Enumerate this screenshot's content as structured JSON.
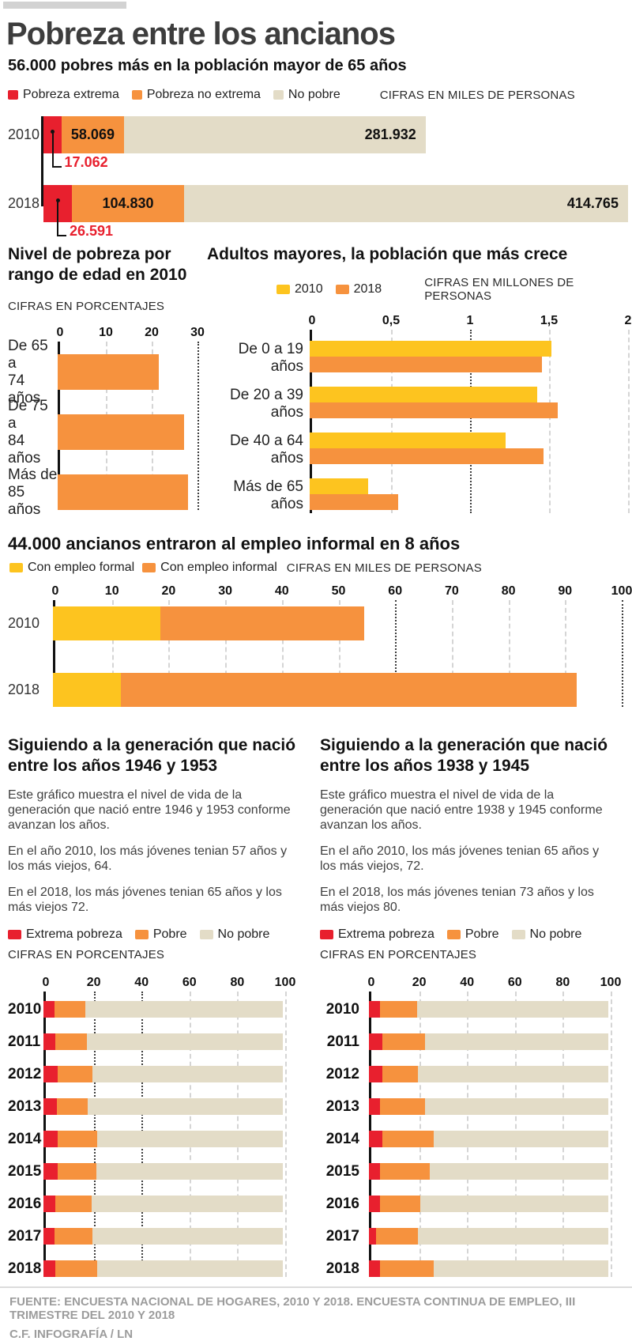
{
  "page": {
    "title": "Pobreza entre los ancianos",
    "subtitle": "56.000 pobres más en la población mayor de 65 años",
    "footer": {
      "source": "FUENTE: ENCUESTA NACIONAL DE HOGARES, 2010 Y 2018. ENCUESTA CONTINUA DE EMPLEO, III TRIMESTRE DEL 2010 Y 2018",
      "credit": "C.F. INFOGRAFÍA / LN"
    }
  },
  "colors": {
    "red": "#e8202e",
    "orange": "#f6923e",
    "beige": "#e3dcc7",
    "yellow": "#fdc41f",
    "title_gray": "#3d3d3d",
    "footer_gray": "#9c9c9c"
  },
  "chart_data": [
    {
      "id": "pobreza-totales",
      "type": "bar",
      "orientation": "horizontal",
      "stacked": true,
      "units_note": "CIFRAS EN MILES DE PERSONAS",
      "categories": [
        "2010",
        "2018"
      ],
      "series": [
        {
          "name": "Pobreza extrema",
          "color": "#e8202e",
          "values": [
            17062,
            26591
          ],
          "labels": [
            "17.062",
            "26.591"
          ]
        },
        {
          "name": "Pobreza no extrema",
          "color": "#f6923e",
          "values": [
            58069,
            104830
          ],
          "labels": [
            "58.069",
            "104.830"
          ]
        },
        {
          "name": "No pobre",
          "color": "#e3dcc7",
          "values": [
            281932,
            414765
          ],
          "labels": [
            "281.932",
            "414.765"
          ]
        }
      ],
      "xlim": [
        0,
        546186
      ],
      "grid": false
    },
    {
      "id": "nivel-pobreza-2010",
      "type": "bar",
      "orientation": "horizontal",
      "title": "Nivel de pobreza por rango de edad en 2010",
      "units_note": "CIFRAS EN PORCENTAJES",
      "categories": [
        "De 65 a 74 años",
        "De 75 a 84 años",
        "Más de 85 años"
      ],
      "category_lines": [
        [
          "De 65 a",
          "74 años"
        ],
        [
          "De 75 a",
          "84 años"
        ],
        [
          "Más de",
          "85 años"
        ]
      ],
      "values": [
        22,
        27.5,
        28.5
      ],
      "color": "#f6923e",
      "ticks": [
        0,
        10,
        20,
        30
      ],
      "major_ticks": [
        30
      ],
      "xlim": [
        0,
        31
      ]
    },
    {
      "id": "adultos-mayores-crecen",
      "type": "bar",
      "orientation": "horizontal",
      "grouped": true,
      "title": "Adultos mayores, la población que más crece",
      "units_note": "CIFRAS EN MILLONES DE PERSONAS",
      "categories": [
        "De 0 a 19 años",
        "De 20 a 39 años",
        "De 40 a 64 años",
        "Más de 65 años"
      ],
      "series": [
        {
          "name": "2010",
          "color": "#fdc41f",
          "values": [
            1.53,
            1.44,
            1.24,
            0.37
          ]
        },
        {
          "name": "2018",
          "color": "#f6923e",
          "values": [
            1.47,
            1.57,
            1.48,
            0.56
          ]
        }
      ],
      "ticks": [
        "0",
        "0,5",
        "1",
        "1,5",
        "2"
      ],
      "tick_values": [
        0,
        0.5,
        1,
        1.5,
        2
      ],
      "major_ticks": [
        1
      ],
      "xlim": [
        0,
        2
      ]
    },
    {
      "id": "empleo-informal",
      "type": "bar",
      "orientation": "horizontal",
      "stacked": true,
      "title": "44.000 ancianos entraron al empleo informal en 8 años",
      "units_note": "CIFRAS EN MILES DE PERSONAS",
      "categories": [
        "2010",
        "2018"
      ],
      "series": [
        {
          "name": "Con empleo formal",
          "color": "#fdc41f",
          "values": [
            19,
            12
          ]
        },
        {
          "name": "Con empleo informal",
          "color": "#f6923e",
          "values": [
            36,
            80.5
          ]
        }
      ],
      "ticks": [
        0,
        10,
        20,
        30,
        40,
        50,
        60,
        70,
        80,
        90,
        100
      ],
      "major_ticks": [
        60,
        100
      ],
      "xlim": [
        0,
        100
      ]
    },
    {
      "id": "generacion-1946-1953",
      "type": "bar",
      "orientation": "horizontal",
      "stacked": true,
      "title": "Siguiendo a la generación que nació entre los años 1946 y 1953",
      "paragraphs": [
        "Este gráfico muestra el nivel de vida de la generación que nació entre 1946 y 1953 conforme avanzan los años.",
        "En el año 2010, los más jóvenes tenian 57 años y los más viejos, 64.",
        "En el 2018, los más jóvenes tenian 65 años y los más viejos 72."
      ],
      "units_note": "CIFRAS EN PORCENTAJES",
      "categories": [
        "2010",
        "2011",
        "2012",
        "2013",
        "2014",
        "2015",
        "2016",
        "2017",
        "2018"
      ],
      "series": [
        {
          "name": "Extrema pobreza",
          "color": "#e8202e",
          "values": [
            4.5,
            5,
            6,
            5.5,
            6,
            6,
            5,
            4.5,
            5
          ]
        },
        {
          "name": "Pobre",
          "color": "#f6923e",
          "values": [
            13,
            13,
            14.5,
            13,
            16.5,
            16,
            15,
            16,
            17.5
          ]
        },
        {
          "name": "No pobre",
          "color": "#e3dcc7",
          "values": [
            82.5,
            82,
            79.5,
            81.5,
            77.5,
            78,
            80,
            79.5,
            77.5
          ]
        }
      ],
      "ticks": [
        0,
        20,
        40,
        60,
        80,
        100
      ],
      "major_ticks": [
        20,
        40
      ],
      "xlim": [
        0,
        100
      ]
    },
    {
      "id": "generacion-1938-1945",
      "type": "bar",
      "orientation": "horizontal",
      "stacked": true,
      "title": "Siguiendo a la generación que nació entre los años 1938 y 1945",
      "paragraphs": [
        "Este gráfico muestra el nivel de vida de la generación que nació entre 1938 y 1945 conforme avanzan los años.",
        "En el año 2010, los más jóvenes tenian 65 años y los más viejos, 72.",
        "En el 2018, los más jóvenes tenian 73  años y los más viejos 80."
      ],
      "units_note": "CIFRAS EN PORCENTAJES",
      "categories": [
        "2010",
        "2011",
        "2012",
        "2013",
        "2014",
        "2015",
        "2016",
        "2017",
        "2018"
      ],
      "series": [
        {
          "name": "Extrema pobreza",
          "color": "#e8202e",
          "values": [
            4.5,
            5.5,
            5.5,
            4.5,
            5.5,
            4.5,
            4.5,
            3,
            4.5
          ]
        },
        {
          "name": "Pobre",
          "color": "#f6923e",
          "values": [
            15.5,
            18,
            15,
            19,
            21.5,
            21,
            17,
            17.5,
            22.5
          ]
        },
        {
          "name": "No pobre",
          "color": "#e3dcc7",
          "values": [
            80,
            76.5,
            79.5,
            76.5,
            73,
            74.5,
            78.5,
            79.5,
            73
          ]
        }
      ],
      "ticks": [
        0,
        20,
        40,
        60,
        80,
        100
      ],
      "major_ticks": [],
      "xlim": [
        0,
        100
      ]
    }
  ]
}
